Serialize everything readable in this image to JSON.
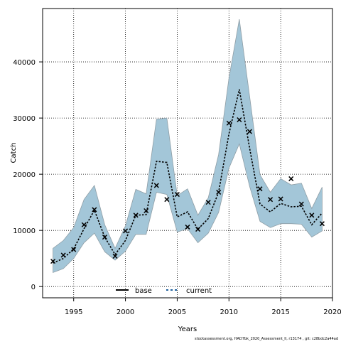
{
  "chart_data": {
    "type": "line",
    "xlabel": "Years",
    "ylabel": "Catch",
    "xlim": [
      1992,
      2020
    ],
    "ylim": [
      -2000,
      49500
    ],
    "x_ticks": [
      1995,
      2000,
      2005,
      2010,
      2015,
      2020
    ],
    "y_ticks": [
      0,
      10000,
      20000,
      30000,
      40000
    ],
    "grid": true,
    "legend_placement": "bottom-center",
    "footer": "stockassessment.org,  HAD7bk_2020_Assessment_II, r13174 ,  git: c28bdc2a44ad",
    "colors": {
      "band": "#a3c6d8",
      "band_edge": "#8f9ea6",
      "current_line": "#000000",
      "observed": "#000000"
    },
    "years": [
      1993,
      1994,
      1995,
      1996,
      1997,
      1998,
      1999,
      2000,
      2001,
      2002,
      2003,
      2004,
      2005,
      2006,
      2007,
      2008,
      2009,
      2010,
      2011,
      2012,
      2013,
      2014,
      2015,
      2016,
      2017,
      2018,
      2019
    ],
    "series": [
      {
        "name": "base",
        "style": "solid",
        "values": []
      },
      {
        "name": "current",
        "style": "dashed",
        "values": [
          4200,
          5000,
          6700,
          10300,
          13600,
          8800,
          5700,
          8200,
          12700,
          12800,
          22300,
          22100,
          12400,
          13300,
          10200,
          12100,
          16800,
          27200,
          35100,
          24600,
          14700,
          13300,
          14800,
          14200,
          14300,
          11000,
          13100
        ],
        "upper": [
          6800,
          8200,
          10500,
          15500,
          18000,
          11000,
          6800,
          10800,
          17300,
          16500,
          29800,
          30000,
          16200,
          17400,
          12700,
          15800,
          23500,
          37100,
          47600,
          33800,
          19900,
          16800,
          19200,
          18100,
          18400,
          13900,
          17700
        ],
        "lower": [
          2500,
          3200,
          5000,
          7800,
          9500,
          6200,
          4700,
          6300,
          9300,
          9300,
          16800,
          16400,
          9700,
          10300,
          7800,
          9500,
          13200,
          21100,
          25400,
          17800,
          11600,
          10500,
          11200,
          11200,
          11100,
          8800,
          9900
        ]
      }
    ],
    "observed": [
      4500,
      5600,
      6600,
      11000,
      13700,
      8800,
      5400,
      9900,
      12700,
      13500,
      18000,
      15500,
      16400,
      10600,
      10200,
      15000,
      16800,
      29100,
      29700,
      27600,
      17400,
      15500,
      15600,
      19200,
      14700,
      12700,
      11200
    ]
  }
}
